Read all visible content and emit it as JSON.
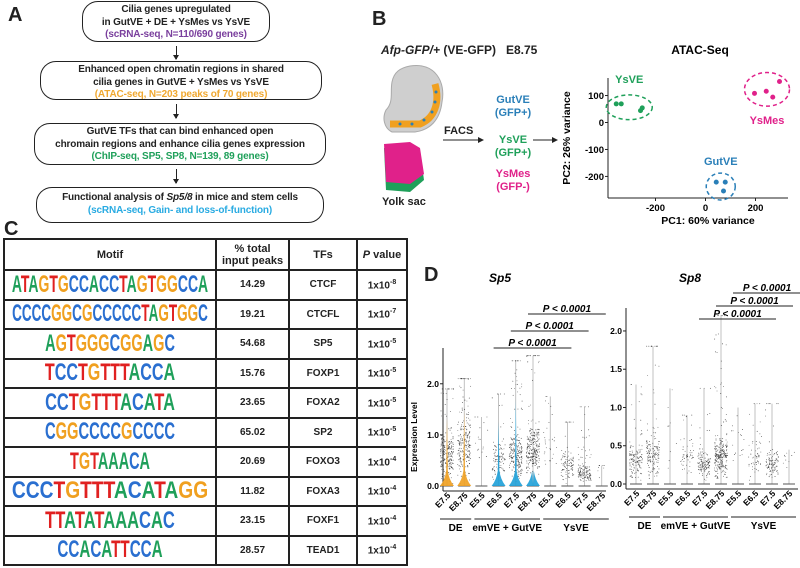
{
  "panel_labels": {
    "a": "A",
    "b": "B",
    "c": "C",
    "d": "D"
  },
  "panel_a": {
    "steps": [
      {
        "line1": "Cilia genes upregulated",
        "line2": "in GutVE + DE + YsMes vs YsVE",
        "detail": "(scRNA-seq, N=110/690 genes)",
        "detail_color": "#7a3f9d"
      },
      {
        "line1": "Enhanced open chromatin regions in shared",
        "line2": "cilia genes in GutVE + YsMes vs YsVE",
        "detail": "(ATAC-seq, N=203 peaks of 70 genes)",
        "detail_color": "#f0a830"
      },
      {
        "line1": "GutVE TFs that can bind enhanced open",
        "line2": "chromain regions and enhance cilia genes expression",
        "detail": "(ChIP-seq, SP5, SP8, N=139, 89 genes)",
        "detail_color": "#1fa05a"
      },
      {
        "line1_pre": "Functional analysis of ",
        "line1_italic": "Sp5/8",
        "line1_post": " in mice and stem cells",
        "detail": "(scRNA-seq, Gain- and loss-of-function)",
        "detail_color": "#29abe2"
      }
    ]
  },
  "panel_b": {
    "title_italic": "Afp-GFP/+",
    "title_rest": " (VE-GFP)   E8.75",
    "yolk_sac_label": "Yolk sac",
    "facs_label": "FACS",
    "populations": [
      {
        "name": "GutVE",
        "gfp": "(GFP+)",
        "color": "#2a7fb8"
      },
      {
        "name": "YsVE",
        "gfp": "(GFP+)",
        "color": "#1fa05a"
      },
      {
        "name": "YsMes",
        "gfp": "(GFP-)",
        "color": "#e0218a"
      }
    ],
    "chart_data": {
      "type": "scatter",
      "title": "ATAC-Seq",
      "xlabel": "PC1: 60% variance",
      "ylabel": "PC2: 26% variance",
      "xlim": [
        -390,
        330
      ],
      "ylim": [
        -280,
        165
      ],
      "xticks": [
        -200,
        0,
        200
      ],
      "yticks": [
        -200,
        -100,
        0,
        100
      ],
      "grid": false,
      "series": [
        {
          "name": "YsVE",
          "color": "#1fa05a",
          "points": [
            [
              -357,
              69
            ],
            [
              -337,
              69
            ],
            [
              -260,
              44
            ],
            [
              -253,
              54
            ]
          ]
        },
        {
          "name": "YsMes",
          "color": "#e0218a",
          "points": [
            [
              196,
              108
            ],
            [
              243,
              116
            ],
            [
              269,
              94
            ],
            [
              296,
              152
            ]
          ]
        },
        {
          "name": "GutVE",
          "color": "#2a7fb8",
          "points": [
            [
              43,
              -221
            ],
            [
              79,
              -221
            ],
            [
              72,
              -254
            ]
          ]
        }
      ]
    }
  },
  "panel_c": {
    "chart_data": {
      "type": "table",
      "headers": {
        "motif": "Motif",
        "pct_line1": "% total",
        "pct_line2": "input peaks",
        "tfs": "TFs",
        "p_italic": "P",
        "p_rest": " value"
      },
      "rows": [
        {
          "motif": "ATAGTGCCACCTAGTGGCCA",
          "pct": "14.29",
          "tf": "CTCF",
          "p_base": "1x10",
          "p_exp": "-8"
        },
        {
          "motif": "CCCCGGCGCCCCCTAGTGGC",
          "pct": "19.21",
          "tf": "CTCFL",
          "p_base": "1x10",
          "p_exp": "-7"
        },
        {
          "motif": "AGTGGGCGGAGC",
          "pct": "54.68",
          "tf": "SP5",
          "p_base": "1x10",
          "p_exp": "-5"
        },
        {
          "motif": "TCCTGTTTACCA",
          "pct": "15.76",
          "tf": "FOXP1",
          "p_base": "1x10",
          "p_exp": "-5"
        },
        {
          "motif": "CCTGTTTACATA",
          "pct": "23.65",
          "tf": "FOXA2",
          "p_base": "1x10",
          "p_exp": "-5"
        },
        {
          "motif": "CGGCCCCGCCCC",
          "pct": "65.02",
          "tf": "SP2",
          "p_base": "1x10",
          "p_exp": "-5"
        },
        {
          "motif": "TGTAAACA",
          "pct": "20.69",
          "tf": "FOXO3",
          "p_base": "1x10",
          "p_exp": "-4"
        },
        {
          "motif": "CCCTGTTTACATAGG",
          "pct": "11.82",
          "tf": "FOXA3",
          "p_base": "1x10",
          "p_exp": "-4"
        },
        {
          "motif": "TTATATAAACAC",
          "pct": "23.15",
          "tf": "FOXF1",
          "p_base": "1x10",
          "p_exp": "-4"
        },
        {
          "motif": "CCACATTCCA",
          "pct": "28.57",
          "tf": "TEAD1",
          "p_base": "1x10",
          "p_exp": "-4"
        }
      ],
      "nucleotide_colors": {
        "A": "#1fa05a",
        "C": "#2a6fd0",
        "G": "#f0a020",
        "T": "#e02020"
      }
    }
  },
  "panel_d": {
    "chart_data": [
      {
        "type": "scatter",
        "title": "Sp5",
        "ylabel": "Expression Level",
        "ylim": [
          0,
          2.7
        ],
        "yticks": [
          "0.0",
          "1.0",
          "2.0"
        ],
        "categories": [
          "E7.5",
          "E8.75",
          "E5.5",
          "E6.5",
          "E7.5",
          "E8.75",
          "E5.5",
          "E6.5",
          "E7.5",
          "E8.75"
        ],
        "groups": [
          {
            "label": "DE",
            "from": 0,
            "to": 1
          },
          {
            "label": "emVE + GutVE",
            "from": 2,
            "to": 5
          },
          {
            "label": "YsVE",
            "from": 6,
            "to": 9
          }
        ],
        "max": [
          1.9,
          2.1,
          1.35,
          1.8,
          2.45,
          2.55,
          1.75,
          1.25,
          1.55,
          0.4
        ],
        "bulk_center": [
          0.6,
          0.8,
          0.8,
          0.5,
          0.6,
          0.7,
          0.8,
          0.4,
          0.25,
          0.3
        ],
        "density": [
          0.9,
          0.9,
          0.05,
          0.4,
          0.9,
          1.0,
          0.1,
          0.35,
          0.5,
          0.02
        ],
        "violin_colors": [
          "#f0a020",
          "#f0a020",
          null,
          "#1ea0d8",
          "#1ea0d8",
          "#1ea0d8",
          null,
          null,
          null,
          null
        ],
        "comparisons": [
          {
            "label": "P < 0.0001",
            "from": 3,
            "to": 7
          },
          {
            "label": "P < 0.0001",
            "from": 4,
            "to": 8
          },
          {
            "label": "P < 0.0001",
            "from": 5,
            "to": 9
          }
        ]
      },
      {
        "type": "scatter",
        "title": "Sp8",
        "ylabel": "",
        "ylim": [
          0,
          2.3
        ],
        "yticks": [
          "0.0",
          "0.5",
          "1.0",
          "1.5",
          "2.0"
        ],
        "categories": [
          "E7.5",
          "E8.75",
          "E5.5",
          "E6.5",
          "E7.5",
          "E8.75",
          "E5.5",
          "E6.5",
          "E7.5",
          "E8.75"
        ],
        "groups": [
          {
            "label": "DE",
            "from": 0,
            "to": 1
          },
          {
            "label": "emVE + GutVE",
            "from": 2,
            "to": 5
          },
          {
            "label": "YsVE",
            "from": 6,
            "to": 9
          }
        ],
        "max": [
          1.3,
          1.8,
          1.25,
          0.9,
          1.25,
          2.2,
          1.0,
          1.05,
          1.05,
          0.45
        ],
        "bulk_center": [
          0.3,
          0.4,
          0.5,
          0.35,
          0.25,
          0.35,
          0.5,
          0.35,
          0.25,
          0.3
        ],
        "density": [
          0.5,
          0.6,
          0.02,
          0.2,
          0.5,
          1.0,
          0.05,
          0.2,
          0.4,
          0.02
        ],
        "violin_colors": [
          null,
          null,
          null,
          null,
          null,
          null,
          null,
          null,
          null,
          null
        ],
        "comparisons": [
          {
            "label": "P < 0.0001",
            "from": 4,
            "to": 8
          },
          {
            "label": "P < 0.0001",
            "from": 5,
            "to": 9
          },
          {
            "label": "P < 0.0001",
            "from": 6,
            "to": 10
          }
        ]
      }
    ]
  }
}
